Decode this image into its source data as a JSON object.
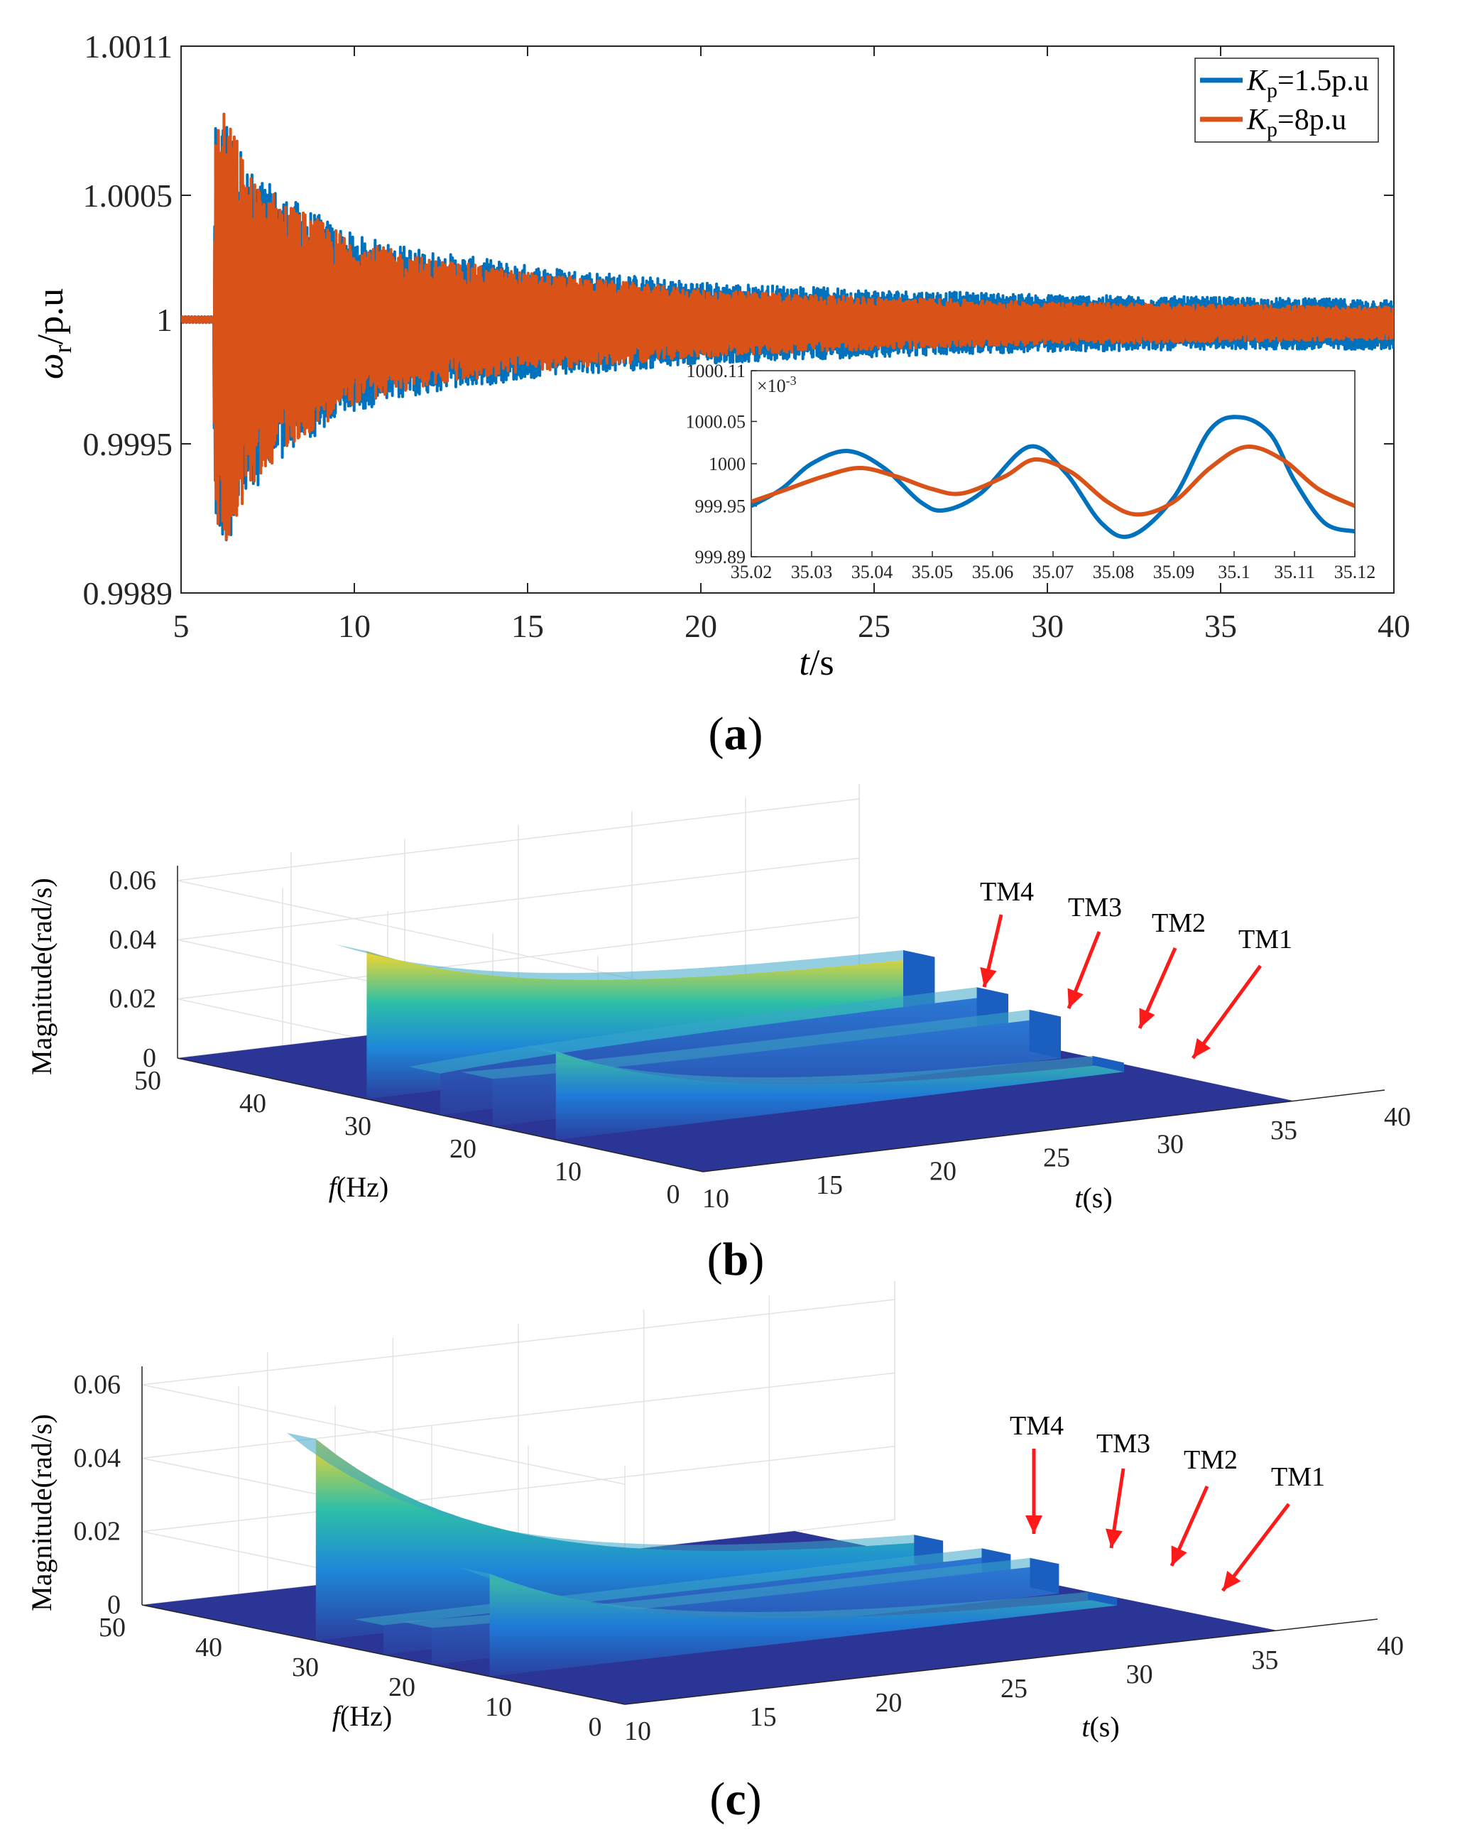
{
  "chart_data": [
    {
      "type": "line",
      "panel_label": "a",
      "xlabel": "t/s",
      "ylabel": "ωr/p.u",
      "xlim": [
        5,
        40
      ],
      "ylim": [
        0.9989,
        1.0011
      ],
      "x_ticks": [
        "5",
        "10",
        "15",
        "20",
        "25",
        "30",
        "35",
        "40"
      ],
      "y_ticks": [
        "0.9989",
        "0.9995",
        "1",
        "1.0005",
        "1.0011"
      ],
      "y_tick_values": [
        0.9989,
        0.9995,
        1.0,
        1.0005,
        1.0011
      ],
      "grid": false,
      "legend_position": "top-right",
      "series": [
        {
          "name": "Kp=1.5p.u",
          "name_main": "K",
          "name_sub": "p",
          "name_rest": "=1.5p.u",
          "color": "#0072BD",
          "envelope": {
            "t": [
              5,
              5.9,
              6.0,
              6.3,
              7,
              8,
              10,
              12,
              15,
              20,
              25,
              30,
              35,
              40
            ],
            "upper": [
              1.00002,
              1.00002,
              1.0008,
              1.00083,
              1.0006,
              1.0005,
              1.00034,
              1.00028,
              1.00022,
              1.00015,
              1.00012,
              1.0001,
              1.00009,
              1.00008
            ],
            "lower": [
              0.99998,
              0.99998,
              0.9991,
              0.99908,
              0.9993,
              0.99945,
              0.99963,
              0.9997,
              0.99976,
              0.99982,
              0.99985,
              0.99987,
              0.99988,
              0.99988
            ]
          }
        },
        {
          "name": "Kp=8p.u",
          "name_main": "K",
          "name_sub": "p",
          "name_rest": "=8p.u",
          "color": "#D95319",
          "envelope": {
            "t": [
              5,
              5.9,
              6.0,
              6.3,
              7,
              8,
              10,
              12,
              15,
              20,
              25,
              30,
              35,
              40
            ],
            "upper": [
              1.00002,
              1.00002,
              1.00078,
              1.00085,
              1.00058,
              1.00048,
              1.00032,
              1.00025,
              1.00019,
              1.00012,
              1.00009,
              1.00007,
              1.00006,
              1.00005
            ],
            "lower": [
              0.99998,
              0.99998,
              0.99915,
              0.9991,
              0.99932,
              0.99948,
              0.99966,
              0.99973,
              0.99979,
              0.99985,
              0.99988,
              0.9999,
              0.99991,
              0.99992
            ]
          }
        }
      ],
      "inset": {
        "xlim": [
          35.02,
          35.12
        ],
        "ylim": [
          999.89,
          1000.11
        ],
        "multiplier": "×10-3",
        "multiplier_base": "×10",
        "multiplier_exp": "-3",
        "x_ticks": [
          "35.02",
          "35.03",
          "35.04",
          "35.05",
          "35.06",
          "35.07",
          "35.08",
          "35.09",
          "35.1",
          "35.11",
          "35.12"
        ],
        "y_ticks": [
          "999.89",
          "999.95",
          "1000",
          "1000.05",
          "1000.11"
        ],
        "y_tick_values": [
          999.89,
          999.95,
          1000,
          1000.05,
          1000.11
        ],
        "series": [
          {
            "name": "Kp=1.5p.u",
            "color": "#0072BD",
            "x": [
              35.02,
              35.025,
              35.03,
              35.036,
              35.042,
              35.048,
              35.052,
              35.058,
              35.066,
              35.072,
              35.078,
              35.083,
              35.09,
              35.096,
              35.101,
              35.106,
              35.11,
              35.115,
              35.12
            ],
            "y": [
              999.95,
              999.97,
              1000.0,
              1000.015,
              999.995,
              999.955,
              999.945,
              999.965,
              1000.02,
              999.99,
              999.93,
              999.915,
              999.96,
              1000.04,
              1000.055,
              1000.035,
              999.98,
              999.93,
              999.92
            ]
          },
          {
            "name": "Kp=8p.u",
            "color": "#D95319",
            "x": [
              35.02,
              35.026,
              35.032,
              35.038,
              35.044,
              35.05,
              35.055,
              35.062,
              35.067,
              35.073,
              35.079,
              35.084,
              35.09,
              35.096,
              35.102,
              35.108,
              35.114,
              35.12
            ],
            "y": [
              999.955,
              999.97,
              999.985,
              999.995,
              999.985,
              999.97,
              999.965,
              999.985,
              1000.005,
              999.99,
              999.955,
              999.94,
              999.955,
              999.995,
              1000.02,
              1000.005,
              999.97,
              999.95
            ]
          }
        ]
      }
    },
    {
      "type": "surface3d",
      "panel_label": "b",
      "xlabel": "t(s)",
      "xlabel_main": "t",
      "xlabel_rest": "(s)",
      "ylabel": "f(Hz)",
      "ylabel_main": "f",
      "ylabel_rest": "(Hz)",
      "zlabel": "Magnitude(rad/s)",
      "t_ticks": [
        "10",
        "15",
        "20",
        "25",
        "30",
        "35",
        "40"
      ],
      "f_ticks": [
        "0",
        "10",
        "20",
        "30",
        "40",
        "50"
      ],
      "z_ticks": [
        "0",
        "0.02",
        "0.04",
        "0.06"
      ],
      "z_tick_values": [
        0,
        0.02,
        0.04,
        0.06
      ],
      "tlim": [
        10,
        40
      ],
      "flim": [
        0,
        50
      ],
      "zlim": [
        0,
        0.06
      ],
      "ridges": [
        {
          "mode": "TM4",
          "f": 32,
          "peak": 0.05,
          "end": 0.024,
          "t_start": 10,
          "t_end": 35
        },
        {
          "mode": "TM3",
          "f": 25,
          "peak": 0.014,
          "end": 0.018,
          "t_start": 10,
          "t_end": 35
        },
        {
          "mode": "TM2",
          "f": 20,
          "peak": 0.016,
          "end": 0.014,
          "t_start": 10,
          "t_end": 35
        },
        {
          "mode": "TM1",
          "f": 14,
          "peak": 0.03,
          "end": 0.002,
          "t_start": 10,
          "t_end": 35
        }
      ],
      "annotations": [
        "TM4",
        "TM3",
        "TM2",
        "TM1"
      ]
    },
    {
      "type": "surface3d",
      "panel_label": "c",
      "xlabel": "t(s)",
      "xlabel_main": "t",
      "xlabel_rest": "(s)",
      "ylabel": "f(Hz)",
      "ylabel_main": "f",
      "ylabel_rest": "(Hz)",
      "zlabel": "Magnitude(rad/s)",
      "t_ticks": [
        "10",
        "15",
        "20",
        "25",
        "30",
        "35",
        "40"
      ],
      "f_ticks": [
        "0",
        "10",
        "20",
        "30",
        "40",
        "50"
      ],
      "z_ticks": [
        "0",
        "0.02",
        "0.04",
        "0.06"
      ],
      "z_tick_values": [
        0,
        0.02,
        0.04,
        0.06
      ],
      "tlim": [
        10,
        40
      ],
      "flim": [
        0,
        50
      ],
      "zlim": [
        0,
        0.06
      ],
      "ridges": [
        {
          "mode": "TM4",
          "f": 32,
          "peak": 0.055,
          "end": 0.006,
          "t_start": 10,
          "t_end": 35
        },
        {
          "mode": "TM3",
          "f": 25,
          "peak": 0.008,
          "end": 0.008,
          "t_start": 10,
          "t_end": 35
        },
        {
          "mode": "TM2",
          "f": 20,
          "peak": 0.01,
          "end": 0.008,
          "t_start": 10,
          "t_end": 35
        },
        {
          "mode": "TM1",
          "f": 14,
          "peak": 0.028,
          "end": 0.001,
          "t_start": 10,
          "t_end": 35
        }
      ],
      "annotations": [
        "TM4",
        "TM3",
        "TM2",
        "TM1"
      ]
    }
  ]
}
